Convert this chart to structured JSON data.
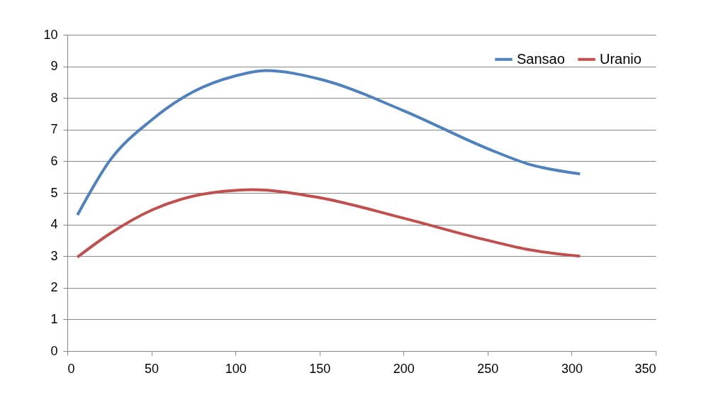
{
  "chart_data": {
    "type": "line",
    "xlim": [
      0,
      350
    ],
    "xticks": [
      0,
      50,
      100,
      150,
      200,
      250,
      300,
      350
    ],
    "ylim": [
      0,
      10
    ],
    "yticks": [
      0,
      1,
      2,
      3,
      4,
      5,
      6,
      7,
      8,
      9,
      10
    ],
    "grid": "y",
    "legend": "top right",
    "marker": "none",
    "line_style": "solid",
    "series": [
      {
        "name": "Sansao",
        "color": "#4f81bd",
        "x": [
          6,
          25,
          50,
          75,
          100,
          118,
          150,
          200,
          250,
          275,
          305
        ],
        "values": [
          4.3,
          6.0,
          7.3,
          8.2,
          8.7,
          8.87,
          8.6,
          7.6,
          6.4,
          5.9,
          5.6
        ]
      },
      {
        "name": "Uranio",
        "color": "#c0504d",
        "x": [
          6,
          25,
          50,
          75,
          100,
          110,
          150,
          200,
          250,
          275,
          305
        ],
        "values": [
          2.97,
          3.7,
          4.45,
          4.9,
          5.08,
          5.1,
          4.85,
          4.2,
          3.5,
          3.2,
          3.0
        ]
      }
    ]
  }
}
